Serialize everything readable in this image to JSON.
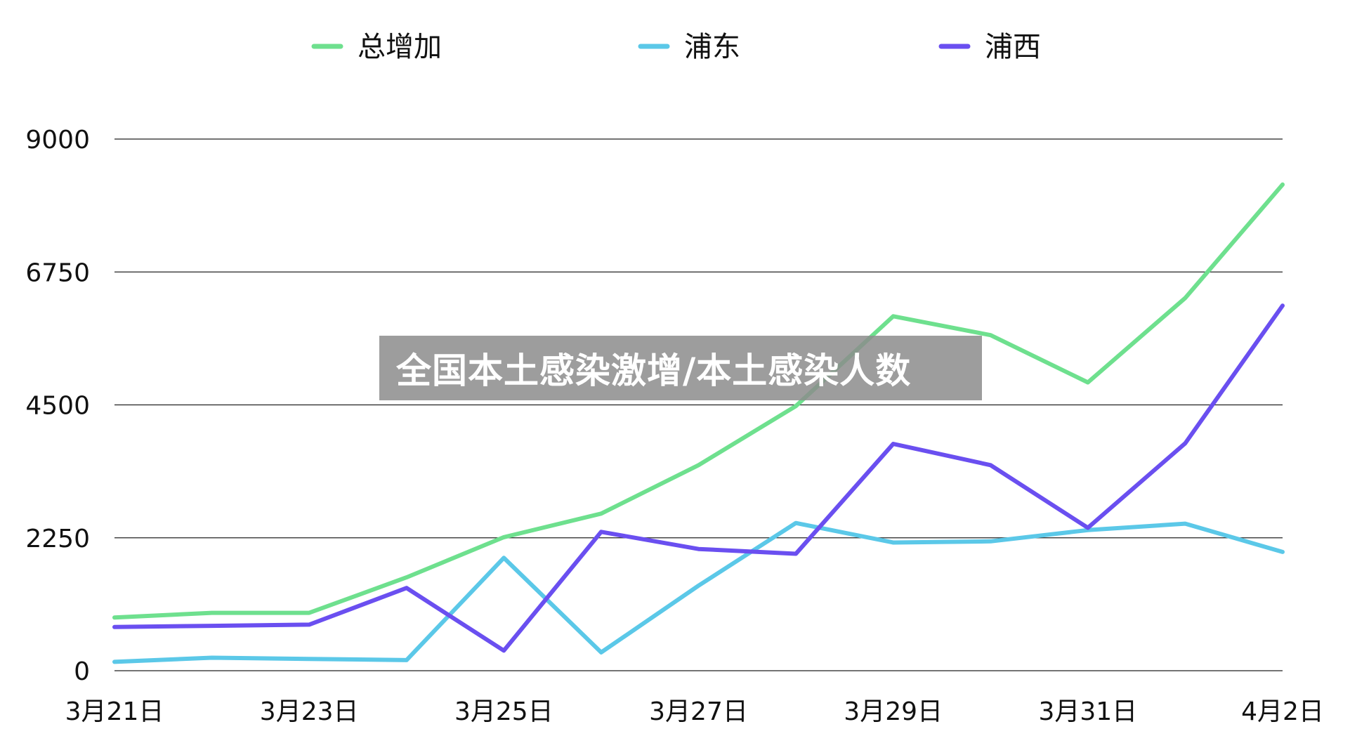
{
  "chart_data": {
    "type": "line",
    "title": "全国本土感染激增/本土感染人数",
    "xlabel": "",
    "ylabel": "",
    "ylim": [
      0,
      9000
    ],
    "yticks": [
      0,
      2250,
      4500,
      6750,
      9000
    ],
    "x": [
      "3月21日",
      "3月22日",
      "3月23日",
      "3月24日",
      "3月25日",
      "3月26日",
      "3月27日",
      "3月28日",
      "3月29日",
      "3月30日",
      "3月31日",
      "4月1日",
      "4月2日"
    ],
    "xtick_labels": [
      "3月21日",
      "3月23日",
      "3月25日",
      "3月27日",
      "3月29日",
      "3月31日",
      "4月2日"
    ],
    "grid": "horizontal",
    "legend": "top-center",
    "series": [
      {
        "name": "总增加",
        "color": "#6ee08e",
        "values": [
          900,
          980,
          980,
          1580,
          2260,
          2660,
          3480,
          4480,
          6000,
          5680,
          4880,
          6310,
          8230
        ]
      },
      {
        "name": "浦东",
        "color": "#5bc8e8",
        "values": [
          150,
          220,
          200,
          180,
          1910,
          310,
          1440,
          2500,
          2170,
          2190,
          2380,
          2490,
          2010
        ]
      },
      {
        "name": "浦西",
        "color": "#6a4ff0",
        "values": [
          740,
          760,
          780,
          1400,
          340,
          2350,
          2060,
          1980,
          3840,
          3480,
          2420,
          3850,
          6180
        ]
      }
    ]
  }
}
